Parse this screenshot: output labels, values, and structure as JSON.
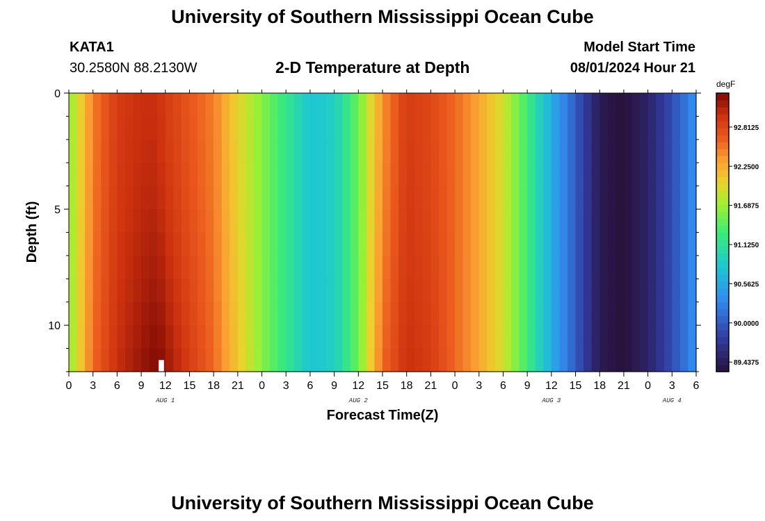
{
  "header": {
    "title": "University of Southern Mississippi Ocean Cube",
    "station": "KATA1",
    "coordinates": "30.2580N  88.2130W",
    "plot_title": "2-D Temperature at Depth",
    "model_start_label": "Model Start Time",
    "model_start_value": "08/01/2024 Hour 21"
  },
  "footer": {
    "title": "University of Southern Mississippi Ocean Cube"
  },
  "chart_data": {
    "type": "heatmap",
    "title": "2-D Temperature at Depth",
    "xlabel": "Forecast Time(Z)",
    "ylabel": "Depth (ft)",
    "x_tick_labels": [
      "0",
      "3",
      "6",
      "9",
      "12",
      "15",
      "18",
      "21",
      "0",
      "3",
      "6",
      "9",
      "12",
      "15",
      "18",
      "21",
      "0",
      "3",
      "6",
      "9",
      "12",
      "15",
      "18",
      "21",
      "0",
      "3",
      "6"
    ],
    "date_labels": [
      {
        "text": "AUG 1",
        "hour": 12
      },
      {
        "text": "AUG 2",
        "hour": 36
      },
      {
        "text": "AUG 3",
        "hour": 60
      },
      {
        "text": "AUG 4",
        "hour": 75
      }
    ],
    "xlim": [
      0,
      78
    ],
    "ylim": [
      0,
      12
    ],
    "y_ticks": [
      0,
      5,
      10
    ],
    "y_tick_labels": [
      "0",
      "5",
      "10"
    ],
    "colorbar": {
      "unit": "degF",
      "range": [
        89.3,
        93.3
      ],
      "tick_values": [
        92.8125,
        92.25,
        91.6875,
        91.125,
        90.5625,
        90.0,
        89.4375
      ],
      "tick_labels": [
        "92.8125",
        "92.2500",
        "91.6875",
        "91.1250",
        "90.5625",
        "90.0000",
        "89.4375"
      ]
    },
    "time_hours": [
      0,
      3,
      6,
      9,
      11,
      12,
      15,
      18,
      21,
      24,
      27,
      30,
      33,
      36,
      39,
      42,
      45,
      48,
      51,
      54,
      57,
      60,
      63,
      66,
      69,
      72,
      75,
      78
    ],
    "surface_temperature_degF": [
      91.6,
      92.5,
      92.9,
      93.0,
      93.0,
      92.9,
      92.7,
      92.5,
      92.0,
      91.6,
      91.2,
      90.8,
      90.9,
      91.5,
      92.4,
      92.9,
      92.8,
      92.6,
      92.3,
      91.9,
      91.3,
      90.6,
      90.0,
      89.4,
      89.3,
      89.5,
      89.9,
      90.4
    ],
    "bottom_temperature_degF": [
      91.6,
      92.6,
      93.0,
      93.2,
      93.3,
      93.2,
      92.9,
      92.6,
      92.1,
      91.6,
      91.2,
      90.8,
      90.9,
      91.5,
      92.6,
      93.0,
      92.9,
      92.6,
      92.3,
      91.9,
      91.3,
      90.6,
      90.0,
      89.4,
      89.3,
      89.5,
      89.9,
      90.4
    ],
    "missing_cells": [
      {
        "hour": 11.5,
        "depth_ft": 11.75
      }
    ]
  }
}
